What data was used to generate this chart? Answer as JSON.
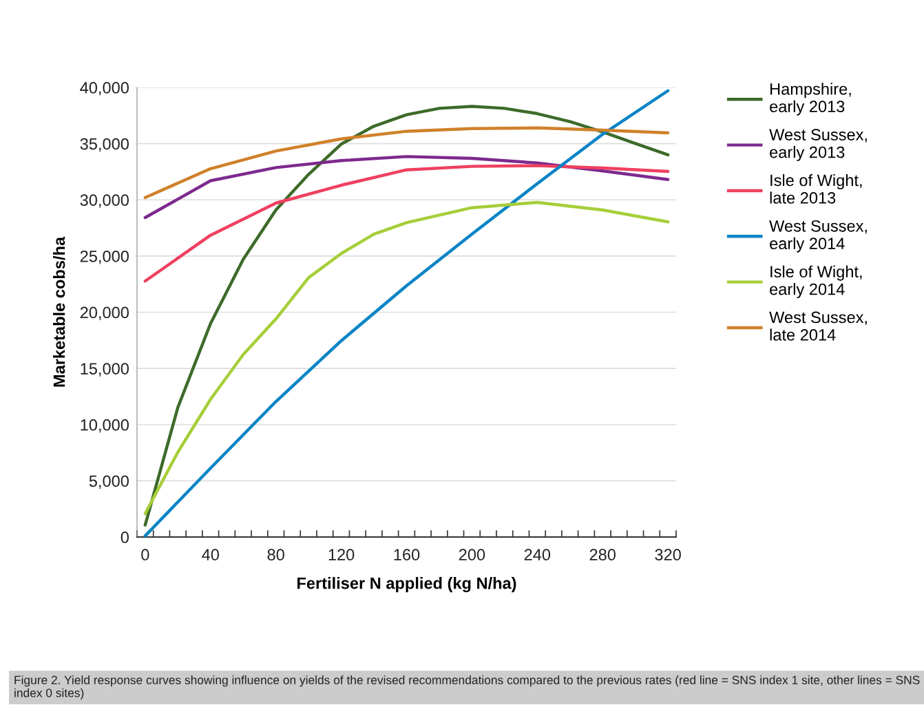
{
  "chart_data": {
    "type": "line",
    "xlabel": "Fertiliser N applied (kg N/ha)",
    "ylabel": "Marketable cobs/ha",
    "series": [
      {
        "name": "Hampshire,\nearly 2013",
        "color": "#3d6b2a",
        "x": [
          0,
          20,
          40,
          60,
          80,
          100,
          120,
          140,
          160,
          180,
          200,
          220,
          240,
          260,
          280,
          300,
          320
        ],
        "values": [
          1060,
          11530,
          18990,
          24700,
          29100,
          32260,
          34960,
          36550,
          37570,
          38140,
          38320,
          38140,
          37670,
          36960,
          36040,
          35020,
          34000
        ]
      },
      {
        "name": "West Sussex,\nearly 2013",
        "color": "#7d2a8e",
        "x": [
          0,
          40,
          80,
          120,
          160,
          200,
          240,
          280,
          320
        ],
        "values": [
          28420,
          31700,
          32870,
          33490,
          33850,
          33690,
          33280,
          32570,
          31810
        ]
      },
      {
        "name": "Isle of Wight,\nlate 2013",
        "color": "#ef4060",
        "x": [
          0,
          40,
          80,
          120,
          160,
          200,
          240,
          280,
          320
        ],
        "values": [
          22770,
          26850,
          29710,
          31300,
          32670,
          32980,
          33040,
          32830,
          32530
        ]
      },
      {
        "name": "West Sussex,\nearly 2014",
        "color": "#0a84c6",
        "x": [
          0,
          40,
          80,
          120,
          160,
          200,
          240,
          280,
          320
        ],
        "values": [
          100,
          6130,
          12050,
          17460,
          22360,
          26950,
          31440,
          35830,
          39710
        ]
      },
      {
        "name": "Isle of Wight,\nearly 2014",
        "color": "#a6ce39",
        "x": [
          0,
          20,
          40,
          60,
          80,
          100,
          120,
          140,
          160,
          200,
          240,
          280,
          320
        ],
        "values": [
          2080,
          7550,
          12250,
          16230,
          19400,
          23070,
          25220,
          26950,
          27970,
          29300,
          29770,
          29100,
          28040
        ]
      },
      {
        "name": "West Sussex,\nlate 2014",
        "color": "#d0812a",
        "x": [
          0,
          40,
          80,
          120,
          160,
          200,
          240,
          280,
          320
        ],
        "values": [
          30200,
          32770,
          34340,
          35420,
          36100,
          36340,
          36400,
          36200,
          35960
        ]
      }
    ],
    "xlim": [
      -5,
      325
    ],
    "xticks": [
      {
        "value": -5,
        "label": null
      },
      {
        "value": 0,
        "label": "0"
      },
      {
        "value": 5,
        "label": null
      },
      {
        "value": 15,
        "label": null
      },
      {
        "value": 25,
        "label": null
      },
      {
        "value": 35,
        "label": null
      },
      {
        "value": 40,
        "label": "40"
      },
      {
        "value": 45,
        "label": null
      },
      {
        "value": 55,
        "label": null
      },
      {
        "value": 65,
        "label": null
      },
      {
        "value": 75,
        "label": null
      },
      {
        "value": 80,
        "label": "80"
      },
      {
        "value": 85,
        "label": null
      },
      {
        "value": 95,
        "label": null
      },
      {
        "value": 105,
        "label": null
      },
      {
        "value": 115,
        "label": null
      },
      {
        "value": 120,
        "label": "120"
      },
      {
        "value": 125,
        "label": null
      },
      {
        "value": 135,
        "label": null
      },
      {
        "value": 145,
        "label": null
      },
      {
        "value": 155,
        "label": null
      },
      {
        "value": 160,
        "label": "160"
      },
      {
        "value": 165,
        "label": null
      },
      {
        "value": 175,
        "label": null
      },
      {
        "value": 185,
        "label": null
      },
      {
        "value": 195,
        "label": null
      },
      {
        "value": 200,
        "label": "200"
      },
      {
        "value": 205,
        "label": null
      },
      {
        "value": 215,
        "label": null
      },
      {
        "value": 225,
        "label": null
      },
      {
        "value": 235,
        "label": null
      },
      {
        "value": 240,
        "label": "240"
      },
      {
        "value": 245,
        "label": null
      },
      {
        "value": 255,
        "label": null
      },
      {
        "value": 265,
        "label": null
      },
      {
        "value": 275,
        "label": null
      },
      {
        "value": 280,
        "label": "280"
      },
      {
        "value": 285,
        "label": null
      },
      {
        "value": 295,
        "label": null
      },
      {
        "value": 305,
        "label": null
      },
      {
        "value": 315,
        "label": null
      },
      {
        "value": 320,
        "label": "320"
      },
      {
        "value": 325,
        "label": null
      }
    ],
    "ylim": [
      0,
      40000
    ],
    "yticks": [
      {
        "value": 0,
        "label": "0"
      },
      {
        "value": 5000,
        "label": "5,000"
      },
      {
        "value": 10000,
        "label": "10,000"
      },
      {
        "value": 15000,
        "label": "15,000"
      },
      {
        "value": 20000,
        "label": "20,000"
      },
      {
        "value": 25000,
        "label": "25,000"
      },
      {
        "value": 30000,
        "label": "30,000"
      },
      {
        "value": 35000,
        "label": "35,000"
      },
      {
        "value": 40000,
        "label": "40,000"
      }
    ],
    "grid": "y",
    "legend": "right",
    "marker": "none",
    "line_style": "solid",
    "annotations": [
      "Figure 2. Yield response curves showing influence on yields of the revised recommendations compared to the previous rates (red line = SNS index 1 site, other lines = SNS index 0 sites)"
    ]
  }
}
